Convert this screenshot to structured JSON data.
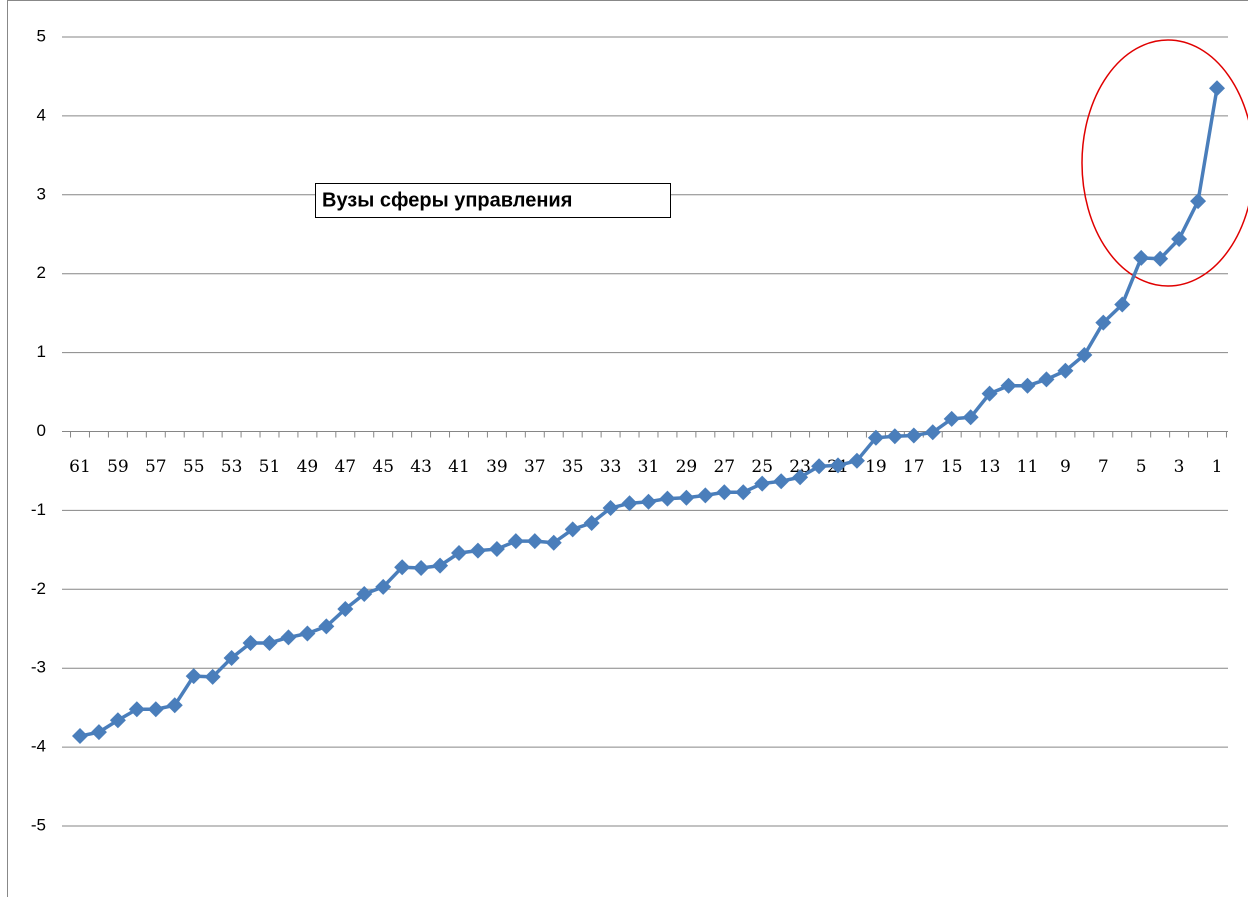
{
  "chart_data": {
    "type": "line",
    "annotation": "Вузы сферы управления",
    "categories": [
      "61",
      null,
      "59",
      null,
      "57",
      null,
      "55",
      null,
      "53",
      null,
      "51",
      null,
      "49",
      null,
      "47",
      null,
      "45",
      null,
      "43",
      null,
      "41",
      null,
      "39",
      null,
      "37",
      null,
      "35",
      null,
      "33",
      null,
      "31",
      null,
      "29",
      null,
      "27",
      null,
      "25",
      null,
      "23",
      null,
      "21",
      null,
      "19",
      null,
      "17",
      null,
      "15",
      null,
      "13",
      null,
      "11",
      null,
      "9",
      null,
      "7",
      null,
      "5",
      null,
      "3",
      null,
      "1"
    ],
    "series": [
      {
        "color": "#4a7ebb",
        "values": [
          -3.86,
          -3.81,
          -3.66,
          -3.52,
          -3.52,
          -3.47,
          -3.1,
          -3.11,
          -2.87,
          -2.68,
          -2.68,
          -2.61,
          -2.56,
          -2.47,
          -2.25,
          -2.06,
          -1.97,
          -1.72,
          -1.73,
          -1.7,
          -1.54,
          -1.51,
          -1.49,
          -1.39,
          -1.39,
          -1.41,
          -1.24,
          -1.16,
          -0.97,
          -0.91,
          -0.89,
          -0.85,
          -0.84,
          -0.81,
          -0.77,
          -0.77,
          -0.66,
          -0.63,
          -0.58,
          -0.44,
          -0.43,
          -0.37,
          -0.08,
          -0.06,
          -0.05,
          -0.01,
          0.16,
          0.18,
          0.48,
          0.58,
          0.58,
          0.66,
          0.77,
          0.97,
          1.38,
          1.61,
          2.2,
          2.19,
          2.44,
          2.92,
          4.35
        ]
      }
    ],
    "ylim": [
      -5,
      5
    ],
    "yticks": [
      -5,
      -4,
      -3,
      -2,
      -1,
      0,
      1,
      2,
      3,
      4,
      5
    ],
    "grid": true
  }
}
